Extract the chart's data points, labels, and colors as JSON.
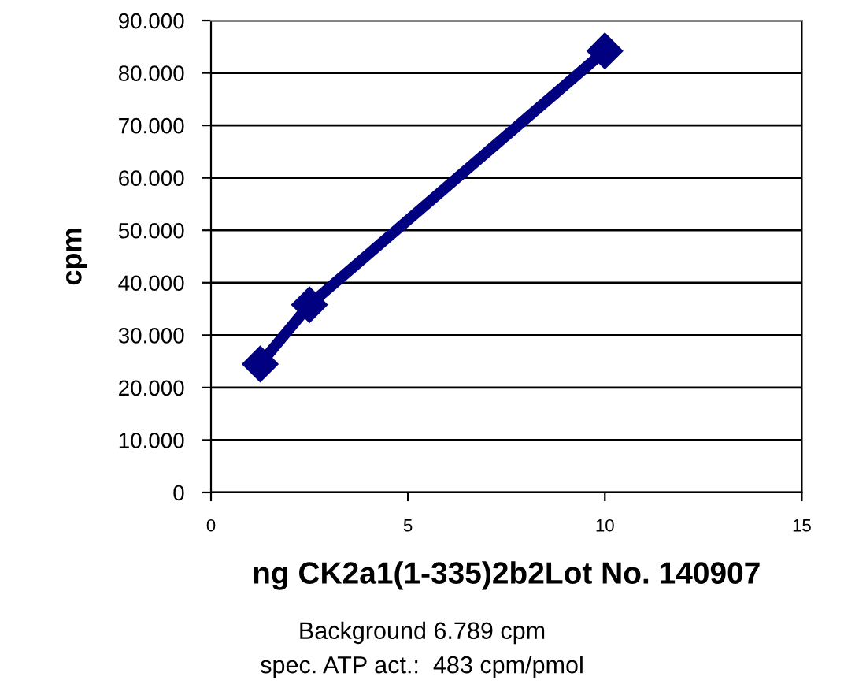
{
  "chart_data": {
    "type": "line",
    "xlabel": "ng CK2a1(1-335)2b2Lot No. 140907",
    "ylabel": "cpm",
    "x": [
      1.25,
      2.5,
      10
    ],
    "series": [
      {
        "color": "#000080",
        "values": [
          24500,
          35800,
          84200
        ]
      }
    ],
    "marker": "diamond",
    "line_style": "solid",
    "xlim": [
      0,
      15
    ],
    "xticks": [
      0,
      5,
      10,
      15
    ],
    "ylim": [
      0,
      90000
    ],
    "yticks": [
      {
        "value": 0,
        "label": "0"
      },
      {
        "value": 10000,
        "label": "10.000"
      },
      {
        "value": 20000,
        "label": "20.000"
      },
      {
        "value": 30000,
        "label": "30.000"
      },
      {
        "value": 40000,
        "label": "40.000"
      },
      {
        "value": 50000,
        "label": "50.000"
      },
      {
        "value": 60000,
        "label": "60.000"
      },
      {
        "value": 70000,
        "label": "70.000"
      },
      {
        "value": 80000,
        "label": "80.000"
      },
      {
        "value": 90000,
        "label": "90.000"
      }
    ],
    "grid": "y",
    "annotations": [
      "Background 6.789 cpm",
      "spec. ATP act.:  483 cpm/pmol"
    ]
  }
}
